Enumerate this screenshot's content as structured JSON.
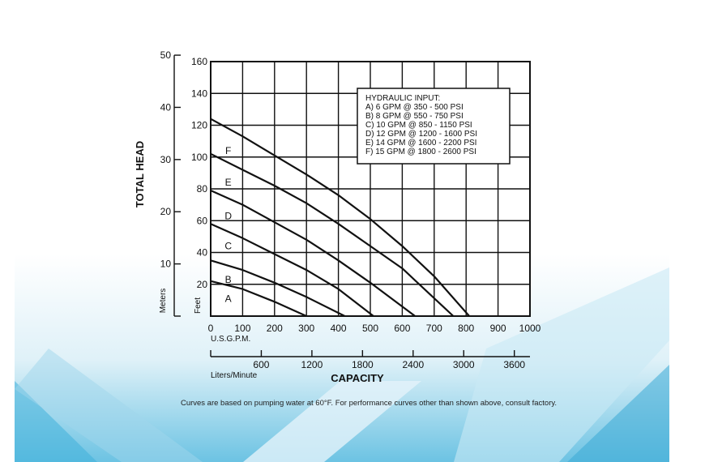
{
  "chart_data": {
    "type": "line",
    "xlabel": "CAPACITY",
    "ylabel": "TOTAL HEAD",
    "x_unit_primary": "U.S.G.P.M.",
    "x_unit_secondary": "Liters/Minute",
    "y_unit_primary": "Feet",
    "y_unit_secondary": "Meters",
    "xlim": [
      0,
      1000
    ],
    "ylim": [
      0,
      160
    ],
    "x_ticks": [
      "0",
      "100",
      "200",
      "300",
      "400",
      "500",
      "600",
      "700",
      "800",
      "900",
      "1000"
    ],
    "y_ticks": [
      "20",
      "40",
      "60",
      "80",
      "100",
      "120",
      "140",
      "160"
    ],
    "meters_ticks": [
      "10",
      "20",
      "30",
      "40",
      "50"
    ],
    "liters_ticks": [
      "600",
      "1200",
      "1800",
      "2400",
      "3000",
      "3600"
    ],
    "grid": true,
    "legend": {
      "title": "HYDRAULIC INPUT:",
      "items": [
        "A) 6 GPM @ 350 - 500 PSI",
        "B) 8 GPM @ 550 - 750 PSI",
        "C) 10 GPM @ 850 - 1150 PSI",
        "D) 12 GPM @ 1200 - 1600 PSI",
        "E) 14 GPM @ 1600 - 2200 PSI",
        "F) 15 GPM @ 1800 - 2600 PSI"
      ],
      "placement": "top-right"
    },
    "series": [
      {
        "name": "A",
        "x": [
          0,
          100,
          200,
          300
        ],
        "y": [
          22,
          17,
          9,
          0
        ]
      },
      {
        "name": "B",
        "x": [
          0,
          100,
          200,
          300,
          420
        ],
        "y": [
          35,
          29,
          21,
          12,
          0
        ]
      },
      {
        "name": "C",
        "x": [
          0,
          100,
          200,
          300,
          400,
          510
        ],
        "y": [
          58,
          49,
          39,
          29,
          17,
          0
        ]
      },
      {
        "name": "D",
        "x": [
          0,
          100,
          200,
          300,
          400,
          500,
          640
        ],
        "y": [
          79,
          70,
          59,
          48,
          35,
          21,
          0
        ]
      },
      {
        "name": "E",
        "x": [
          0,
          100,
          200,
          300,
          400,
          500,
          600,
          760
        ],
        "y": [
          102,
          92,
          82,
          71,
          58,
          44,
          30,
          0
        ]
      },
      {
        "name": "F",
        "x": [
          0,
          100,
          200,
          300,
          400,
          500,
          600,
          700,
          810
        ],
        "y": [
          124,
          113,
          101,
          89,
          76,
          61,
          44,
          25,
          0
        ]
      }
    ]
  },
  "footnote": "Curves are based on pumping water at 60°F. For performance curves other than shown above, consult factory.",
  "colors": {
    "background_top": "#ffffff",
    "accent_bottom": "#29a9d4",
    "line": "#111111"
  }
}
